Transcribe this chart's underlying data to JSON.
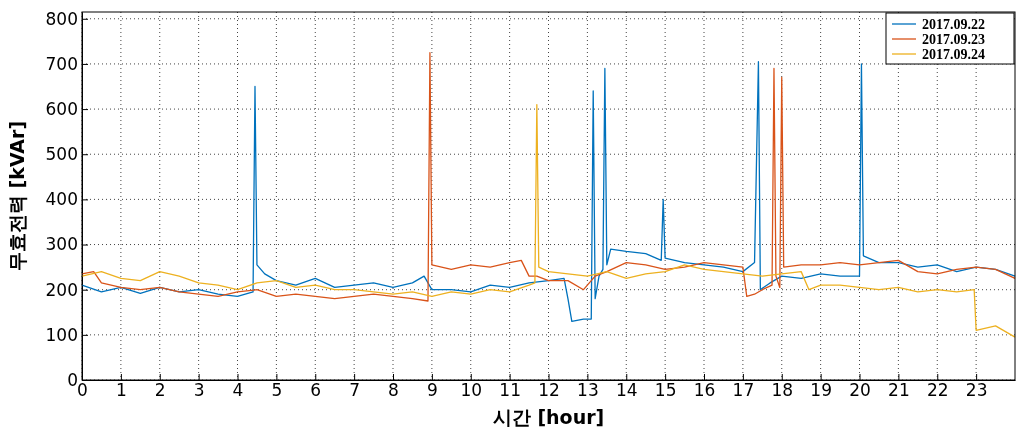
{
  "chart_data": {
    "type": "line",
    "xlabel": "시간 [hour]",
    "ylabel": "무효전력 [kVAr]",
    "xlim": [
      0,
      24
    ],
    "xticks": [
      0,
      1,
      2,
      3,
      4,
      5,
      6,
      7,
      8,
      9,
      10,
      11,
      12,
      13,
      14,
      15,
      16,
      17,
      18,
      19,
      20,
      21,
      22,
      23
    ],
    "ylim": [
      0,
      815
    ],
    "yticks": [
      0,
      100,
      200,
      300,
      400,
      500,
      600,
      700,
      800
    ],
    "grid": true,
    "legend": "top right",
    "line_style": "solid",
    "marker": "none",
    "series": [
      {
        "name": "2017.09.22",
        "color": "#0072bd",
        "x": [
          0,
          0.5,
          1,
          1.5,
          2,
          2.5,
          3,
          3.5,
          4,
          4.4,
          4.45,
          4.5,
          4.7,
          5,
          5.5,
          6,
          6.5,
          7,
          7.5,
          8,
          8.5,
          8.8,
          9,
          9.5,
          10,
          10.5,
          11,
          11.5,
          12,
          12.4,
          12.5,
          12.6,
          12.9,
          13.1,
          13.15,
          13.2,
          13.3,
          13.4,
          13.45,
          13.5,
          13.6,
          14,
          14.5,
          14.9,
          14.95,
          15,
          15.5,
          16,
          16.5,
          17,
          17.3,
          17.4,
          17.45,
          17.7,
          18,
          18.5,
          19,
          19.5,
          20,
          20.05,
          20.1,
          20.5,
          21,
          21.5,
          22,
          22.5,
          23,
          23.5,
          24
        ],
        "values": [
          210,
          195,
          205,
          192,
          205,
          195,
          200,
          190,
          185,
          195,
          650,
          255,
          235,
          220,
          210,
          225,
          205,
          210,
          215,
          205,
          215,
          230,
          200,
          200,
          195,
          210,
          205,
          215,
          220,
          225,
          180,
          130,
          135,
          135,
          640,
          180,
          230,
          245,
          690,
          255,
          290,
          285,
          280,
          265,
          400,
          270,
          260,
          255,
          250,
          240,
          260,
          705,
          200,
          215,
          230,
          225,
          235,
          230,
          230,
          700,
          275,
          260,
          260,
          250,
          255,
          240,
          250,
          245,
          230
        ]
      },
      {
        "name": "2017.09.23",
        "color": "#d95319",
        "x": [
          0,
          0.3,
          0.5,
          1,
          1.5,
          2,
          2.5,
          3,
          3.5,
          4,
          4.5,
          5,
          5.5,
          6,
          6.5,
          7,
          7.5,
          8,
          8.5,
          8.9,
          8.95,
          9,
          9.5,
          10,
          10.5,
          11,
          11.3,
          11.5,
          11.7,
          12,
          12.5,
          12.9,
          13.2,
          13.5,
          14,
          14.5,
          15,
          15.5,
          16,
          16.5,
          17,
          17.1,
          17.3,
          17.5,
          17.75,
          17.8,
          17.85,
          17.95,
          18,
          18.05,
          18.5,
          19,
          19.5,
          20,
          20.5,
          21,
          21.5,
          22,
          22.5,
          23,
          23.5,
          24
        ],
        "values": [
          235,
          240,
          215,
          205,
          200,
          205,
          195,
          190,
          185,
          195,
          200,
          185,
          190,
          185,
          180,
          185,
          190,
          185,
          180,
          175,
          725,
          255,
          245,
          255,
          250,
          260,
          265,
          230,
          230,
          220,
          220,
          200,
          230,
          240,
          260,
          255,
          245,
          250,
          260,
          255,
          250,
          185,
          190,
          200,
          210,
          690,
          230,
          205,
          670,
          250,
          255,
          255,
          260,
          255,
          260,
          265,
          240,
          235,
          245,
          250,
          245,
          225
        ]
      },
      {
        "name": "2017.09.24",
        "color": "#edb120",
        "x": [
          0,
          0.5,
          1,
          1.5,
          2,
          2.5,
          3,
          3.5,
          4,
          4.5,
          5,
          5.5,
          6,
          6.5,
          7,
          7.5,
          8,
          8.5,
          9,
          9.5,
          10,
          10.5,
          11,
          11.5,
          11.65,
          11.7,
          11.75,
          12,
          12.5,
          13,
          13.5,
          14,
          14.5,
          15,
          15.5,
          16,
          16.5,
          17,
          17.5,
          18,
          18.5,
          18.7,
          19,
          19.5,
          20,
          20.5,
          21,
          21.5,
          22,
          22.5,
          22.95,
          23,
          23.5,
          24
        ],
        "values": [
          230,
          240,
          225,
          220,
          240,
          230,
          215,
          210,
          200,
          215,
          220,
          205,
          210,
          200,
          200,
          195,
          190,
          195,
          185,
          195,
          190,
          200,
          195,
          210,
          215,
          610,
          250,
          240,
          235,
          230,
          240,
          225,
          235,
          240,
          255,
          245,
          240,
          235,
          230,
          235,
          240,
          200,
          210,
          210,
          205,
          200,
          205,
          195,
          200,
          195,
          200,
          110,
          120,
          95
        ]
      }
    ]
  }
}
